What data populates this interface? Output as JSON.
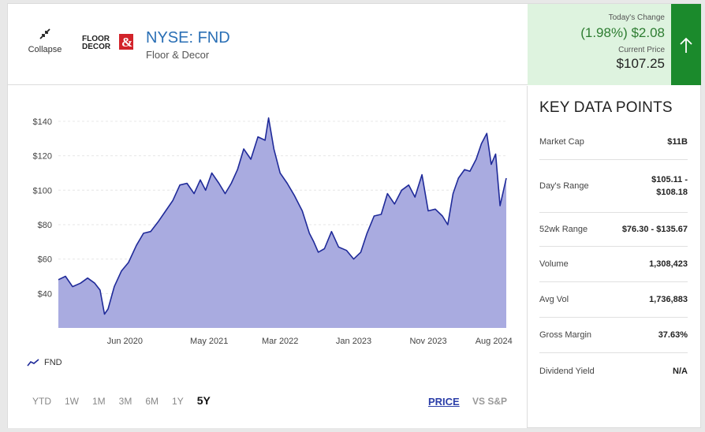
{
  "header": {
    "collapse_label": "Collapse",
    "logo_text": "FLOOR & DECOR",
    "ticker": "NYSE: FND",
    "company": "Floor & Decor"
  },
  "quote": {
    "todays_change_label": "Today's Change",
    "todays_change_value": "(1.98%) $2.08",
    "current_price_label": "Current Price",
    "current_price_value": "$107.25"
  },
  "colors": {
    "ticker_link": "#2a6fb5",
    "change_positive": "#2e7d32",
    "up_box": "#1b8a2c",
    "change_bg": "#def3df",
    "series_line": "#1f2a99",
    "series_fill": "#a9abe0"
  },
  "chart_data": {
    "type": "area",
    "y_ticks": [
      "$140",
      "$120",
      "$100",
      "$80",
      "$60",
      "$40"
    ],
    "y_tick_values": [
      140,
      120,
      100,
      80,
      60,
      40
    ],
    "ylim": [
      20,
      145
    ],
    "x_ticks": [
      "Jun 2020",
      "May 2021",
      "Mar 2022",
      "Jan 2023",
      "Nov 2023",
      "Aug 2024"
    ],
    "x_tick_values": [
      2020.42,
      2021.37,
      2022.17,
      2023.0,
      2023.84,
      2024.58
    ],
    "xlim": [
      2019.67,
      2024.72
    ],
    "grid": true,
    "legend_position": "bottom-left",
    "series": [
      {
        "name": "FND",
        "x": [
          2019.67,
          2019.75,
          2019.83,
          2019.92,
          2020.0,
          2020.08,
          2020.14,
          2020.19,
          2020.23,
          2020.3,
          2020.38,
          2020.46,
          2020.55,
          2020.63,
          2020.71,
          2020.8,
          2020.88,
          2020.96,
          2021.04,
          2021.12,
          2021.2,
          2021.27,
          2021.33,
          2021.4,
          2021.48,
          2021.55,
          2021.62,
          2021.69,
          2021.76,
          2021.84,
          2021.92,
          2022.0,
          2022.04,
          2022.1,
          2022.17,
          2022.25,
          2022.33,
          2022.42,
          2022.5,
          2022.55,
          2022.6,
          2022.67,
          2022.75,
          2022.83,
          2022.92,
          2023.0,
          2023.08,
          2023.15,
          2023.23,
          2023.31,
          2023.38,
          2023.46,
          2023.54,
          2023.62,
          2023.69,
          2023.77,
          2023.84,
          2023.92,
          2024.0,
          2024.06,
          2024.12,
          2024.18,
          2024.25,
          2024.31,
          2024.38,
          2024.44,
          2024.5,
          2024.55,
          2024.6,
          2024.65,
          2024.72
        ],
        "y": [
          48,
          50,
          44,
          46,
          49,
          46,
          42,
          28,
          31,
          44,
          53,
          58,
          68,
          75,
          76,
          82,
          88,
          94,
          103,
          104,
          98,
          106,
          100,
          110,
          104,
          98,
          104,
          112,
          124,
          118,
          131,
          129,
          142,
          124,
          110,
          104,
          97,
          88,
          75,
          70,
          64,
          66,
          76,
          67,
          65,
          60,
          64,
          75,
          85,
          86,
          98,
          92,
          100,
          103,
          96,
          109,
          88,
          89,
          85,
          80,
          98,
          107,
          112,
          111,
          118,
          127,
          133,
          115,
          121,
          91,
          107
        ]
      }
    ]
  },
  "legend": {
    "series_label": "FND"
  },
  "ranges": {
    "items": [
      "YTD",
      "1W",
      "1M",
      "3M",
      "6M",
      "1Y",
      "5Y"
    ],
    "selected": "5Y"
  },
  "modes": {
    "price": "PRICE",
    "vs_sp": "VS S&P"
  },
  "key_data": {
    "title": "KEY DATA POINTS",
    "rows": [
      {
        "label": "Market Cap",
        "value": "$11B"
      },
      {
        "label": "Day's Range",
        "value": "$105.11 - $108.18"
      },
      {
        "label": "52wk Range",
        "value": "$76.30 - $135.67"
      },
      {
        "label": "Volume",
        "value": "1,308,423"
      },
      {
        "label": "Avg Vol",
        "value": "1,736,883"
      },
      {
        "label": "Gross Margin",
        "value": "37.63%"
      },
      {
        "label": "Dividend Yield",
        "value": "N/A"
      }
    ]
  }
}
